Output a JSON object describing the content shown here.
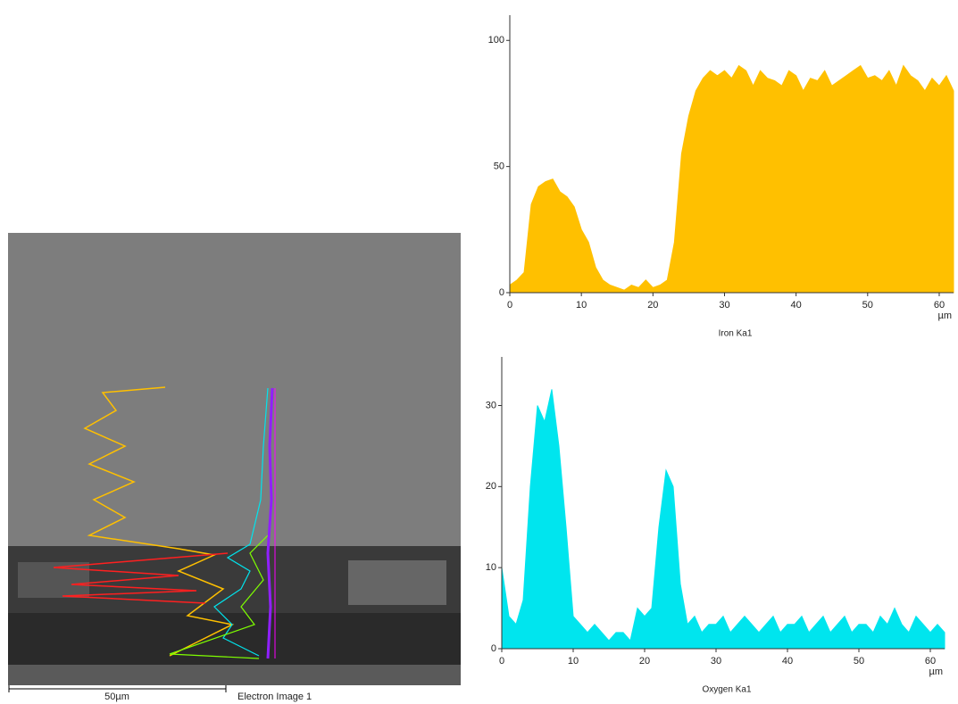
{
  "chart_data": [
    {
      "type": "area",
      "title": "Iron Ka1",
      "x_label": "µm",
      "color": "#ffc000",
      "x": [
        0,
        1,
        2,
        3,
        4,
        5,
        6,
        7,
        8,
        9,
        10,
        11,
        12,
        13,
        14,
        15,
        16,
        17,
        18,
        19,
        20,
        21,
        22,
        23,
        24,
        25,
        26,
        27,
        28,
        29,
        30,
        31,
        32,
        33,
        34,
        35,
        36,
        37,
        38,
        39,
        40,
        41,
        42,
        43,
        44,
        45,
        46,
        47,
        48,
        49,
        50,
        51,
        52,
        53,
        54,
        55,
        56,
        57,
        58,
        59,
        60,
        61,
        62
      ],
      "values": [
        3,
        5,
        8,
        35,
        42,
        44,
        45,
        40,
        38,
        34,
        25,
        20,
        10,
        5,
        3,
        2,
        1,
        3,
        2,
        5,
        2,
        3,
        5,
        20,
        55,
        70,
        80,
        85,
        88,
        86,
        88,
        85,
        90,
        88,
        82,
        88,
        85,
        84,
        82,
        88,
        86,
        80,
        85,
        84,
        88,
        82,
        84,
        86,
        88,
        90,
        85,
        86,
        84,
        88,
        82,
        90,
        86,
        84,
        80,
        85,
        82,
        86,
        80
      ],
      "xlim": [
        0,
        62
      ],
      "xticks": [
        0,
        10,
        20,
        30,
        40,
        50,
        60
      ],
      "ylim": [
        0,
        110
      ],
      "yticks": [
        0,
        50,
        100
      ]
    },
    {
      "type": "area",
      "title": "Oxygen Ka1",
      "x_label": "µm",
      "color": "#00e5ee",
      "x": [
        0,
        1,
        2,
        3,
        4,
        5,
        6,
        7,
        8,
        9,
        10,
        11,
        12,
        13,
        14,
        15,
        16,
        17,
        18,
        19,
        20,
        21,
        22,
        23,
        24,
        25,
        26,
        27,
        28,
        29,
        30,
        31,
        32,
        33,
        34,
        35,
        36,
        37,
        38,
        39,
        40,
        41,
        42,
        43,
        44,
        45,
        46,
        47,
        48,
        49,
        50,
        51,
        52,
        53,
        54,
        55,
        56,
        57,
        58,
        59,
        60,
        61,
        62
      ],
      "values": [
        10,
        4,
        3,
        6,
        20,
        30,
        28,
        32,
        25,
        15,
        4,
        3,
        2,
        3,
        2,
        1,
        2,
        2,
        1,
        5,
        4,
        5,
        15,
        22,
        20,
        8,
        3,
        4,
        2,
        3,
        3,
        4,
        2,
        3,
        4,
        3,
        2,
        3,
        4,
        2,
        3,
        3,
        4,
        2,
        3,
        4,
        2,
        3,
        4,
        2,
        3,
        3,
        2,
        4,
        3,
        5,
        3,
        2,
        4,
        3,
        2,
        3,
        2
      ],
      "xlim": [
        0,
        62
      ],
      "xticks": [
        0,
        10,
        20,
        30,
        40,
        50,
        60
      ],
      "ylim": [
        0,
        36
      ],
      "yticks": [
        0,
        10,
        20,
        30
      ]
    }
  ],
  "image": {
    "scale_bar": "50µm",
    "caption": "Electron Image 1"
  }
}
